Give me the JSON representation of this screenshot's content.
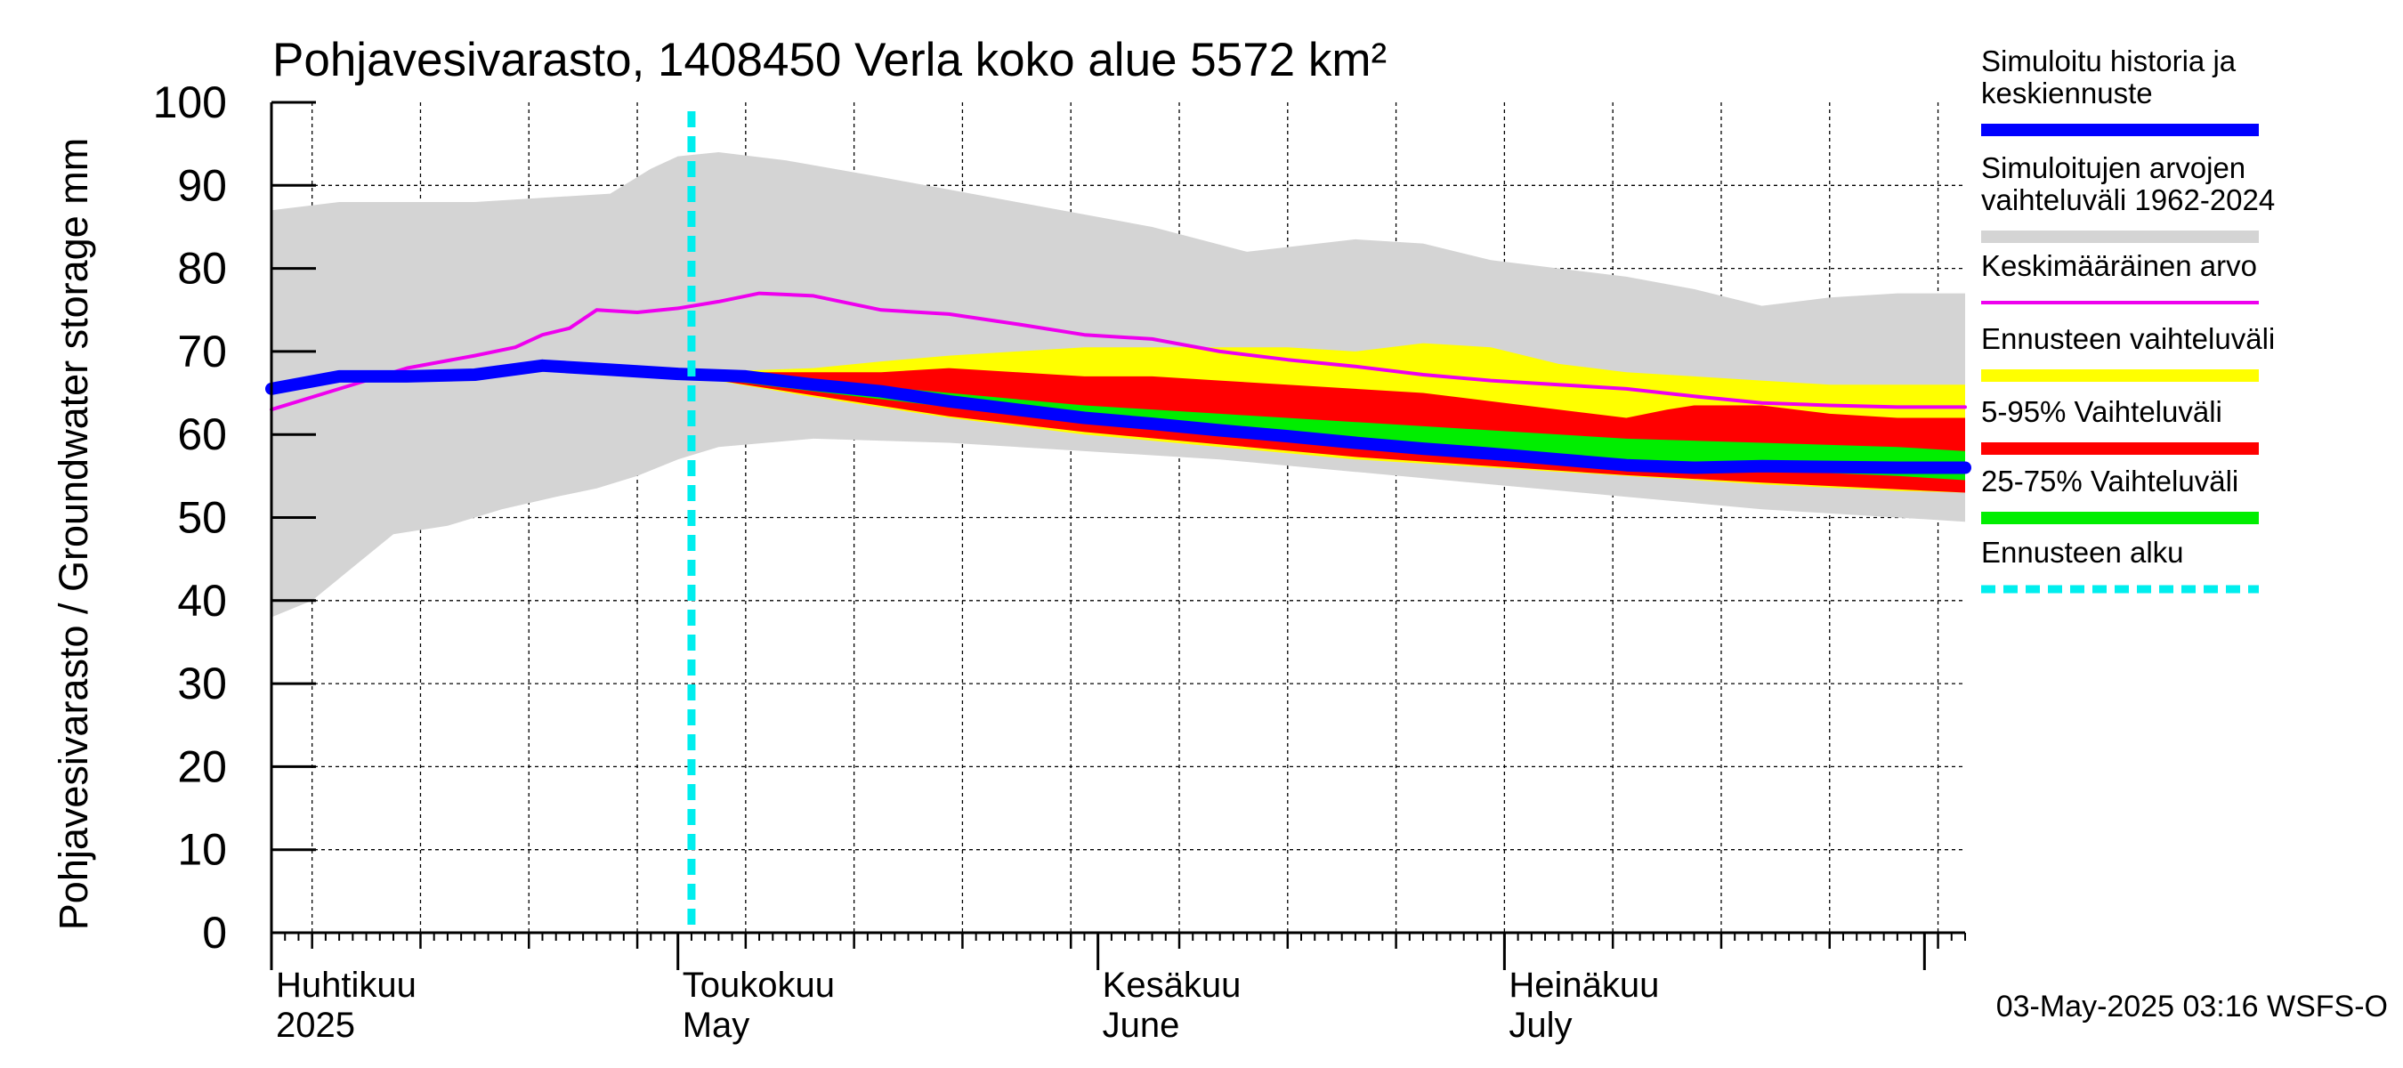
{
  "chart_data": {
    "type": "area",
    "title": "Pohjavesivarasto, 1408450 Verla koko alue 5572 km²",
    "ylabel": "Pohjavesivarasto / Groundwater storage   mm",
    "xlabel": "",
    "ylim": [
      0,
      100
    ],
    "yticks": [
      0,
      10,
      20,
      30,
      40,
      50,
      60,
      70,
      80,
      90,
      100
    ],
    "xlim_days": [
      0,
      125
    ],
    "x_unit": "days since 1-Apr-2025",
    "grid": true,
    "month_labels": [
      {
        "fi": "Huhtikuu",
        "en": "2025",
        "day": 0
      },
      {
        "fi": "Toukokuu",
        "en": "May",
        "day": 30
      },
      {
        "fi": "Kesäkuu",
        "en": "June",
        "day": 61
      },
      {
        "fi": "Heinäkuu",
        "en": "July",
        "day": 91
      }
    ],
    "month_boundaries": [
      0,
      30,
      61,
      91,
      122
    ],
    "forecast_start_day": 31,
    "timestamp": "03-May-2025 03:16 WSFS-O",
    "colors": {
      "range_all": "#d4d4d4",
      "mean": "#ee00ee",
      "forecast_range": "#ffff00",
      "p5_95": "#ff0000",
      "p25_75": "#00ee00",
      "median": "#0000ff",
      "forecast_start": "#00eeee"
    },
    "legend": [
      {
        "label": "Simuloitu historia ja keskiennuste",
        "key": "median"
      },
      {
        "label": "Simuloitujen arvojen vaihteluväli 1962-2024",
        "key": "range_all"
      },
      {
        "label": "Keskimääräinen arvo",
        "key": "mean"
      },
      {
        "label": "Ennusteen vaihteluväli",
        "key": "forecast_range"
      },
      {
        "label": "5-95% Vaihteluväli",
        "key": "p5_95"
      },
      {
        "label": "25-75% Vaihteluväli",
        "key": "p25_75"
      },
      {
        "label": "Ennusteen alku",
        "key": "forecast_start"
      }
    ],
    "series": [
      {
        "name": "Simuloitujen arvojen vaihteluväli 1962-2024 (max)",
        "key": "range_max",
        "x": [
          0,
          5,
          10,
          15,
          20,
          25,
          28,
          30,
          33,
          38,
          45,
          55,
          65,
          72,
          80,
          85,
          90,
          95,
          100,
          105,
          110,
          115,
          120,
          125
        ],
        "values": [
          87,
          88,
          88,
          88,
          88.5,
          89,
          92,
          93.5,
          94,
          93,
          91,
          88,
          85,
          82,
          83.5,
          83,
          81,
          80,
          79,
          77.5,
          75.5,
          76.5,
          77,
          77
        ]
      },
      {
        "name": "Simuloitujen arvojen vaihteluväli 1962-2024 (min)",
        "key": "range_min",
        "x": [
          0,
          3,
          6,
          9,
          13,
          17,
          21,
          24,
          27,
          30,
          33,
          40,
          50,
          60,
          70,
          80,
          90,
          100,
          110,
          120,
          125
        ],
        "values": [
          38,
          40,
          44,
          48,
          49,
          51,
          52.5,
          53.5,
          55,
          57,
          58.5,
          59.5,
          59,
          58,
          57,
          55.5,
          54,
          52.5,
          51,
          50,
          49.5
        ]
      },
      {
        "name": "Keskimääräinen arvo",
        "key": "mean",
        "x": [
          0,
          5,
          10,
          15,
          18,
          20,
          22,
          24,
          27,
          30,
          33,
          36,
          40,
          45,
          50,
          55,
          60,
          65,
          70,
          75,
          80,
          85,
          90,
          95,
          100,
          105,
          110,
          115,
          120,
          125
        ],
        "values": [
          63,
          65.5,
          68,
          69.5,
          70.5,
          72,
          72.8,
          75,
          74.7,
          75.2,
          76,
          77,
          76.7,
          75,
          74.5,
          73.3,
          72,
          71.5,
          70,
          69,
          68.2,
          67.2,
          66.5,
          66,
          65.5,
          64.6,
          63.8,
          63.5,
          63.3,
          63.3
        ]
      },
      {
        "name": "Ennusteen vaihteluväli (max)",
        "key": "forecast_max",
        "x": [
          31,
          35,
          40,
          45,
          50,
          55,
          60,
          65,
          70,
          75,
          80,
          85,
          90,
          95,
          100,
          105,
          110,
          115,
          120,
          125
        ],
        "values": [
          67.5,
          67.7,
          68,
          68.8,
          69.5,
          70,
          70.5,
          70.5,
          70.5,
          70.5,
          70,
          71,
          70.5,
          68.5,
          67.5,
          67,
          66.5,
          66,
          66,
          66
        ]
      },
      {
        "name": "Ennusteen vaihteluväli (min)",
        "key": "forecast_min",
        "x": [
          31,
          40,
          50,
          60,
          70,
          80,
          90,
          100,
          110,
          120,
          125
        ],
        "values": [
          67,
          64.5,
          62,
          60,
          58.5,
          57,
          56,
          55,
          54,
          53.2,
          53
        ]
      },
      {
        "name": "5-95% Vaihteluväli (max)",
        "key": "p95",
        "x": [
          31,
          35,
          40,
          45,
          50,
          55,
          60,
          65,
          70,
          75,
          80,
          85,
          90,
          95,
          100,
          103,
          105,
          110,
          115,
          120,
          125
        ],
        "values": [
          67.5,
          67.5,
          67.5,
          67.5,
          68,
          67.5,
          67,
          67,
          66.5,
          66,
          65.5,
          65,
          64,
          63,
          62,
          63,
          63.5,
          63.5,
          62.5,
          62,
          62
        ]
      },
      {
        "name": "5-95% Vaihteluväli (min)",
        "key": "p5",
        "x": [
          31,
          40,
          50,
          60,
          70,
          80,
          90,
          100,
          110,
          120,
          125
        ],
        "values": [
          67,
          64.7,
          62.2,
          60.3,
          58.8,
          57.3,
          56.2,
          55.1,
          54.2,
          53.4,
          53
        ]
      },
      {
        "name": "25-75% Vaihteluväli (max)",
        "key": "p75",
        "x": [
          31,
          40,
          50,
          60,
          70,
          80,
          90,
          100,
          110,
          120,
          125
        ],
        "values": [
          67.3,
          66.5,
          65,
          63.5,
          62.5,
          61.5,
          60.5,
          59.5,
          59,
          58.5,
          58
        ]
      },
      {
        "name": "25-75% Vaihteluväli (min)",
        "key": "p25",
        "x": [
          31,
          40,
          50,
          60,
          70,
          80,
          90,
          100,
          110,
          120,
          125
        ],
        "values": [
          67,
          65.2,
          63.3,
          61.5,
          60,
          58.7,
          57.5,
          56.5,
          55.7,
          55,
          54.5
        ]
      },
      {
        "name": "Simuloitu historia ja keskiennuste",
        "key": "median",
        "x": [
          0,
          5,
          10,
          15,
          20,
          25,
          30,
          35,
          40,
          45,
          50,
          55,
          60,
          65,
          70,
          75,
          80,
          85,
          90,
          95,
          100,
          105,
          110,
          115,
          120,
          125
        ],
        "values": [
          65.5,
          67,
          67,
          67.2,
          68.3,
          67.8,
          67.3,
          67,
          66,
          65.2,
          64,
          63,
          62,
          61.3,
          60.5,
          59.8,
          59,
          58.3,
          57.7,
          57,
          56.3,
          56,
          56.2,
          56.1,
          56,
          56
        ]
      }
    ]
  }
}
